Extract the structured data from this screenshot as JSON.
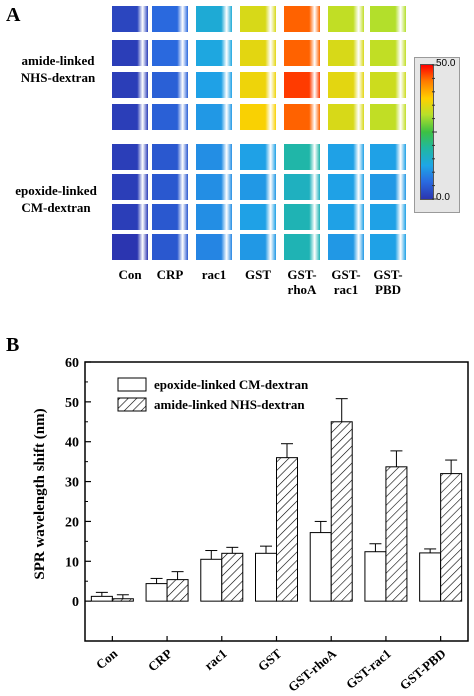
{
  "panels": {
    "a": "A",
    "b": "B"
  },
  "heatmap": {
    "row_groups": [
      {
        "lines": [
          "amide-linked",
          "NHS-dextran"
        ]
      },
      {
        "lines": [
          "epoxide-linked",
          "CM-dextran"
        ]
      }
    ],
    "columns": [
      {
        "lines": [
          "Con"
        ]
      },
      {
        "lines": [
          "CRP"
        ]
      },
      {
        "lines": [
          "rac1"
        ]
      },
      {
        "lines": [
          "GST"
        ]
      },
      {
        "lines": [
          "GST-",
          "rhoA"
        ]
      },
      {
        "lines": [
          "GST-",
          "rac1"
        ]
      },
      {
        "lines": [
          "GST-",
          "PBD"
        ]
      }
    ],
    "colorbar": {
      "max_label": "50.0",
      "min_label": "0.0",
      "min": 0,
      "max": 50
    },
    "cell_values": [
      [
        2,
        6,
        14,
        34,
        45,
        32,
        31
      ],
      [
        1,
        6,
        13,
        35,
        45,
        34,
        32
      ],
      [
        1,
        5,
        12,
        36,
        47,
        35,
        33
      ],
      [
        1,
        5,
        11,
        37,
        45,
        34,
        32
      ],
      [
        1,
        4,
        10,
        12,
        18,
        12,
        12
      ],
      [
        1,
        4,
        10,
        11,
        16,
        12,
        11
      ],
      [
        1,
        4,
        10,
        12,
        17,
        12,
        12
      ],
      [
        0,
        4,
        9,
        11,
        17,
        11,
        12
      ]
    ]
  },
  "chart_data": {
    "type": "bar",
    "categories": [
      "Con",
      "CRP",
      "rac1",
      "GST",
      "GST-rhoA",
      "GST-rac1",
      "GST-PBD"
    ],
    "ylabel": "SPR wavelength shift (nm)",
    "ylim": [
      -10,
      60
    ],
    "yticks": [
      0,
      10,
      20,
      30,
      40,
      50,
      60
    ],
    "legend_position": "top-left",
    "series": [
      {
        "name": "epoxide-linked CM-dextran",
        "pattern": "open",
        "values": [
          1.2,
          4.4,
          10.5,
          12.0,
          17.2,
          12.4,
          12.1
        ],
        "errors": [
          1.0,
          1.3,
          2.2,
          1.8,
          2.8,
          2.0,
          1.0
        ]
      },
      {
        "name": "amide-linked NHS-dextran",
        "pattern": "hatched",
        "values": [
          0.6,
          5.4,
          12.0,
          36.0,
          45.0,
          33.7,
          32.0
        ],
        "errors": [
          1.0,
          2.0,
          1.5,
          3.5,
          5.8,
          4.0,
          3.4
        ]
      }
    ]
  }
}
